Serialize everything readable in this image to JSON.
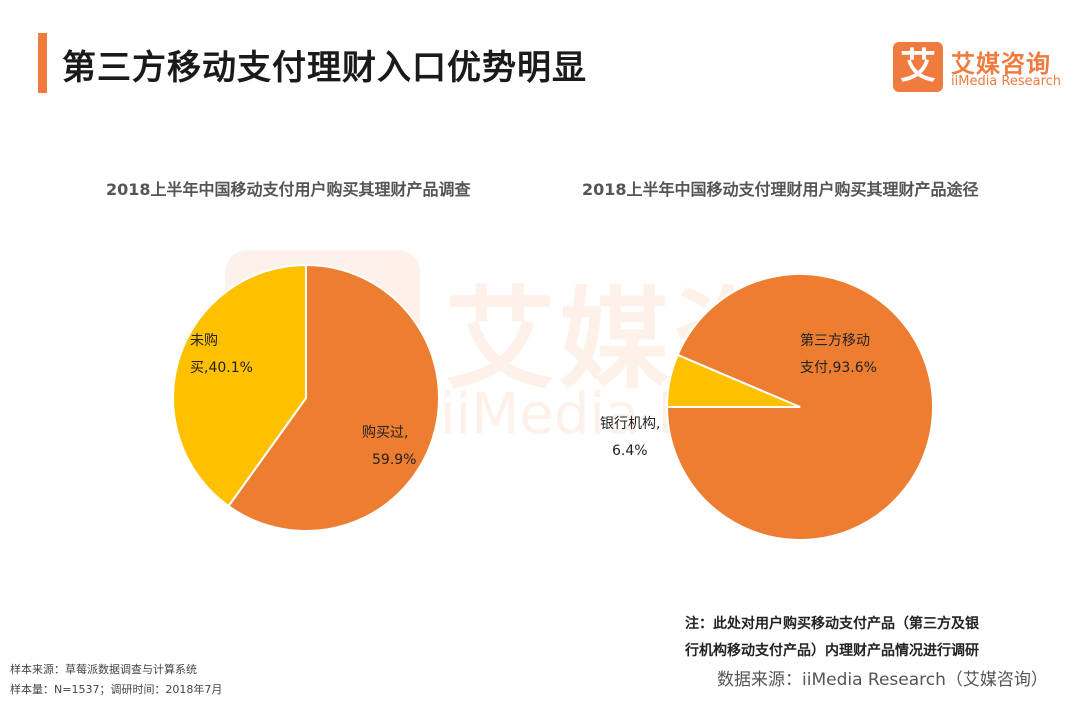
{
  "page": {
    "title": "第三方移动支付理财入口优势明显"
  },
  "logo": {
    "mark": "艾",
    "name_cn": "艾媒咨询",
    "name_en": "iiMedia Research"
  },
  "watermark": {
    "name_cn": "艾媒咨",
    "name_en": "iiMedia R"
  },
  "colors": {
    "accent": "#f07b3f",
    "purchased": "#ed7d31",
    "not_purchased": "#ffc000"
  },
  "chart_data": [
    {
      "type": "pie",
      "title": "2018上半年中国移动支付用户购买其理财产品调查",
      "slices": [
        {
          "label_lines": [
            "购买过,",
            "59.9%"
          ],
          "name": "购买过",
          "value": 59.9,
          "color": "#ed7d31"
        },
        {
          "label_lines": [
            "未购",
            "买,40.1%"
          ],
          "name": "未购买",
          "value": 40.1,
          "color": "#ffc000"
        }
      ]
    },
    {
      "type": "pie",
      "title": "2018上半年中国移动支付理财用户购买其理财产品途径",
      "slices": [
        {
          "label_lines": [
            "第三方移动",
            "支付,93.6%"
          ],
          "name": "第三方移动支付",
          "value": 93.6,
          "color": "#ed7d31"
        },
        {
          "label_lines": [
            "银行机构,",
            "6.4%"
          ],
          "name": "银行机构",
          "value": 6.4,
          "color": "#ffc000"
        }
      ]
    }
  ],
  "footer": {
    "note_line1": "注：此处对用户购买移动支付产品（第三方及银",
    "note_line2": "行机构移动支付产品）内理财产品情况进行调研",
    "source": "数据来源：iiMedia Research（艾媒咨询）",
    "sample_line1": "样本来源：草莓派数据调查与计算系统",
    "sample_line2": "样本量：N=1537；调研时间：2018年7月"
  }
}
